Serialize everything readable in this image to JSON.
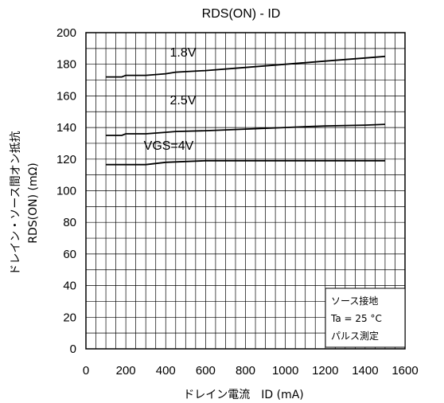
{
  "chart_data": {
    "type": "line",
    "title": "RDS(ON) - ID",
    "xlabel": "ドレイン電流　ID (mA)",
    "ylabel_line1": "ドレイン・ソース間オン抵抗",
    "ylabel_line2": "RDS(ON) (mΩ)",
    "xlim": [
      0,
      1600
    ],
    "ylim": [
      0,
      200
    ],
    "xticks": [
      "0",
      "200",
      "400",
      "600",
      "800",
      "1000",
      "1200",
      "1400",
      "1600"
    ],
    "yticks": [
      "0",
      "20",
      "40",
      "60",
      "80",
      "100",
      "120",
      "140",
      "160",
      "180",
      "200"
    ],
    "grid": true,
    "series": [
      {
        "name": "1.8V",
        "x": [
          100,
          180,
          200,
          300,
          400,
          450,
          600,
          800,
          1000,
          1200,
          1400,
          1500
        ],
        "values": [
          172,
          172,
          173,
          173,
          174,
          175,
          176,
          178,
          180,
          182,
          184,
          185
        ]
      },
      {
        "name": "2.5V",
        "x": [
          100,
          180,
          200,
          300,
          400,
          450,
          600,
          800,
          1000,
          1200,
          1400,
          1500
        ],
        "values": [
          135,
          135,
          136,
          136,
          137,
          137.5,
          138,
          139,
          140,
          141,
          141.5,
          142
        ]
      },
      {
        "name": "VGS=4V",
        "x": [
          100,
          300,
          400,
          600,
          800,
          1000,
          1200,
          1400,
          1500
        ],
        "values": [
          116.5,
          116.5,
          118,
          119,
          119,
          119,
          119,
          119,
          119
        ]
      }
    ],
    "annotation_box": {
      "lines": [
        "ソース接地",
        "Ta = 25 °C",
        "パルス測定"
      ]
    }
  }
}
